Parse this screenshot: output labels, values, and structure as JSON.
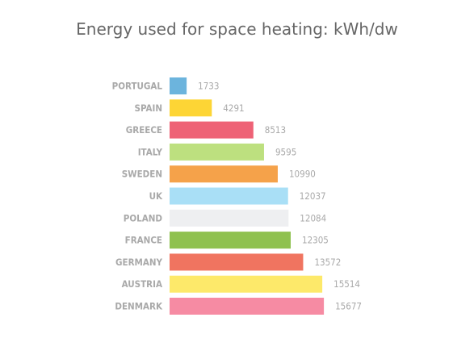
{
  "chart_data": {
    "type": "bar",
    "orientation": "horizontal",
    "title": "Energy used for space heating: kWh/dw",
    "xlabel": "",
    "ylabel": "",
    "grid": false,
    "legend": "none",
    "xlim": [
      0,
      16000
    ],
    "categories": [
      "PORTUGAL",
      "SPAIN",
      "GREECE",
      "ITALY",
      "SWEDEN",
      "UK",
      "POLAND",
      "FRANCE",
      "GERMANY",
      "AUSTRIA",
      "DENMARK"
    ],
    "values": [
      1733,
      4291,
      8513,
      9595,
      10990,
      12037,
      12084,
      12305,
      13572,
      15514,
      15677
    ],
    "value_labels": [
      "1733",
      "4291",
      "8513",
      "9595",
      "10990",
      "12037",
      "12084",
      "12305",
      "13572",
      "15514",
      "15677"
    ],
    "colors": [
      "#6cb4dd",
      "#fdd535",
      "#ee6276",
      "#bde07f",
      "#f5a24a",
      "#a9dff6",
      "#eeeff1",
      "#8fc14f",
      "#f07460",
      "#fde96a",
      "#f68ba3"
    ]
  }
}
